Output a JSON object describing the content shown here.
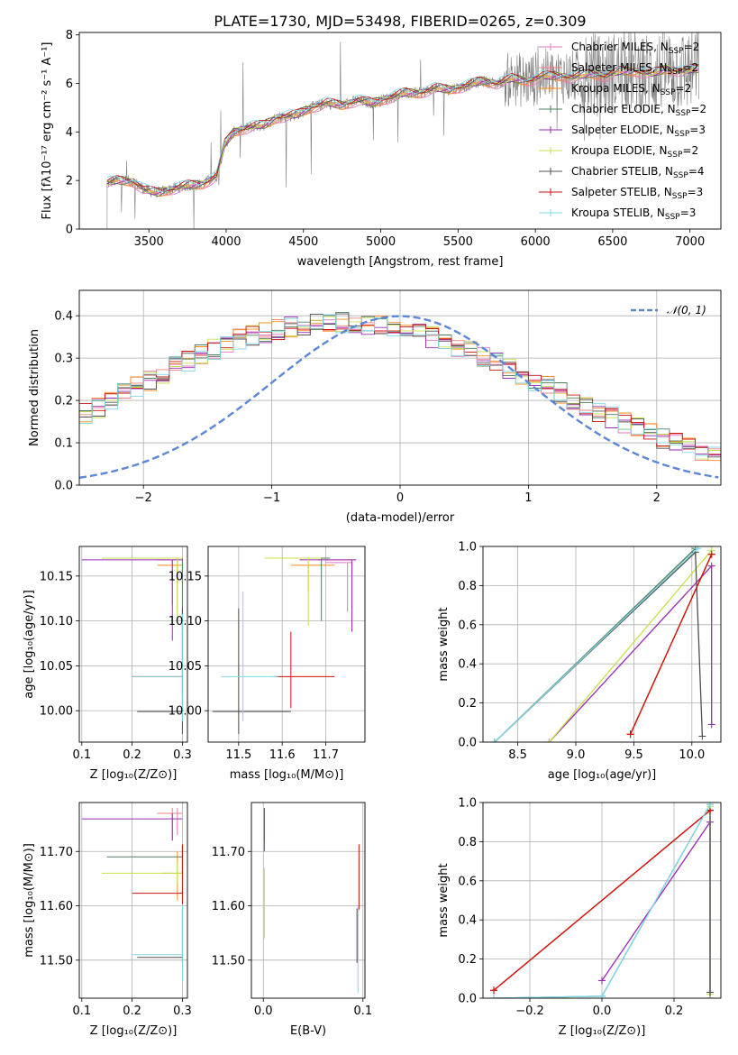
{
  "title": "PLATE=1730, MJD=53498, FIBERID=0265, z=0.309",
  "colors": {
    "data": "#808080",
    "Chabrier MILES": "#e377c2",
    "Salpeter MILES": "#f08080",
    "Kroupa MILES": "#ff8c1a",
    "Chabrier ELODIE": "#4f7f5f",
    "Salpeter ELODIE": "#9a2bb5",
    "Kroupa ELODIE": "#c8e04a",
    "Chabrier STELIB": "#505050",
    "Salpeter STELIB": "#cc1111",
    "Kroupa STELIB": "#80d8e8",
    "gaussian": "#5b87d6",
    "mw_line": "#d2763a"
  },
  "chart_data": [
    {
      "type": "line",
      "xlabel": "wavelength [Angstrom, rest frame]",
      "ylabel": "Flux [fλ10⁻¹⁷ erg cm⁻² s⁻¹ A⁻¹]",
      "xlim": [
        3050,
        7200
      ],
      "ylim": [
        0,
        8.1
      ],
      "xticks": [
        3500,
        4000,
        4500,
        5000,
        5500,
        6000,
        6500,
        7000
      ],
      "yticks": [
        0,
        2,
        4,
        6,
        8
      ],
      "legend_position": "top-right",
      "legend": [
        {
          "name": "Chabrier MILES",
          "n": "2"
        },
        {
          "name": "Salpeter MILES",
          "n": "2"
        },
        {
          "name": "Kroupa MILES",
          "n": "2"
        },
        {
          "name": "Chabrier ELODIE",
          "n": "2"
        },
        {
          "name": "Salpeter ELODIE",
          "n": "3"
        },
        {
          "name": "Kroupa ELODIE",
          "n": "2"
        },
        {
          "name": "Chabrier STELIB",
          "n": "4"
        },
        {
          "name": "Salpeter STELIB",
          "n": "3"
        },
        {
          "name": "Kroupa STELIB",
          "n": "3"
        }
      ],
      "continuum": {
        "x": [
          3230,
          3300,
          3400,
          3480,
          3560,
          3650,
          3750,
          3850,
          3940,
          3990,
          4050,
          4150,
          4250,
          4330,
          4450,
          4550,
          4650,
          4750,
          4850,
          4950,
          5050,
          5150,
          5250,
          5350,
          5450,
          5550,
          5650,
          5750,
          5850,
          5950,
          6050,
          6150,
          6250,
          6350,
          6450,
          6550,
          6650,
          6750,
          6850,
          6950,
          7050
        ],
        "y": [
          1.9,
          2.0,
          1.95,
          1.6,
          1.5,
          1.65,
          1.8,
          1.85,
          2.2,
          3.5,
          4.0,
          4.2,
          4.3,
          4.6,
          4.7,
          5.0,
          5.2,
          5.1,
          5.3,
          5.2,
          5.4,
          5.6,
          5.6,
          5.8,
          5.75,
          5.9,
          6.1,
          6.0,
          6.2,
          6.1,
          6.3,
          6.3,
          6.25,
          6.4,
          6.3,
          6.5,
          6.5,
          6.4,
          6.6,
          6.5,
          6.6
        ]
      }
    },
    {
      "type": "line",
      "xlabel": "(data-model)/error",
      "ylabel": "Normed distribution",
      "xlim": [
        -2.5,
        2.5
      ],
      "ylim": [
        0,
        0.46
      ],
      "xticks": [
        -2,
        -1,
        0,
        1,
        2
      ],
      "yticks": [
        0.0,
        0.1,
        0.2,
        0.3,
        0.4
      ],
      "legend": "𝒩(0, 1)",
      "legend_position": "top-right",
      "bin_width": 0.1,
      "hist_base": [
        0.03,
        0.033,
        0.036,
        0.04,
        0.045,
        0.05,
        0.056,
        0.062,
        0.069,
        0.077,
        0.086,
        0.095,
        0.105,
        0.116,
        0.128,
        0.141,
        0.155,
        0.169,
        0.184,
        0.2,
        0.216,
        0.232,
        0.248,
        0.264,
        0.279,
        0.294,
        0.308,
        0.321,
        0.333,
        0.344,
        0.353,
        0.361,
        0.368,
        0.373,
        0.377,
        0.38,
        0.382,
        0.383,
        0.382,
        0.38,
        0.376,
        0.371,
        0.365,
        0.357,
        0.349,
        0.339,
        0.328,
        0.316,
        0.304,
        0.291,
        0.277,
        0.263,
        0.248,
        0.233,
        0.218,
        0.203,
        0.188,
        0.174,
        0.16,
        0.147,
        0.134,
        0.122,
        0.111,
        0.1,
        0.091,
        0.082,
        0.073,
        0.066,
        0.059,
        0.052,
        0.047,
        0.042,
        0.037,
        0.033,
        0.03,
        0.027,
        0.024,
        0.022,
        0.02,
        0.018,
        0.017,
        0.016,
        0.015,
        0.014,
        0.013
      ]
    },
    {
      "type": "scatter",
      "xlabel": "Z [log₁₀(Z/Z⊙)]",
      "ylabel": "age  [log₁₀(age/yr)]",
      "xlim": [
        0.095,
        0.31
      ],
      "ylim": [
        9.965,
        10.183
      ],
      "xticks": [
        0.1,
        0.2,
        0.3
      ],
      "yticks": [
        10.0,
        10.05,
        10.1,
        10.15
      ],
      "points": [
        {
          "s": "Chabrier MILES",
          "x": 0.29,
          "y": 10.17,
          "xl": 0.02,
          "xh": 0.01,
          "yl": 0.06,
          "yh": 0.0
        },
        {
          "s": "Salpeter MILES",
          "x": 0.28,
          "y": 10.168,
          "xl": 0.03,
          "xh": 0.015,
          "yl": 0.05,
          "yh": 0.0
        },
        {
          "s": "Kroupa MILES",
          "x": 0.29,
          "y": 10.162,
          "xl": 0.04,
          "xh": 0.01,
          "yl": 0.02,
          "yh": 0.0
        },
        {
          "s": "Chabrier ELODIE",
          "x": 0.3,
          "y": 10.17,
          "xl": 0.15,
          "xh": 0.0,
          "yl": 0.08,
          "yh": 0.0
        },
        {
          "s": "Salpeter ELODIE",
          "x": 0.28,
          "y": 10.168,
          "xl": 0.18,
          "xh": 0.02,
          "yl": 0.09,
          "yh": 0.0
        },
        {
          "s": "Kroupa ELODIE",
          "x": 0.29,
          "y": 10.17,
          "xl": 0.15,
          "xh": 0.01,
          "yl": 0.07,
          "yh": 0.0
        },
        {
          "s": "Chabrier STELIB",
          "x": 0.3,
          "y": 9.999,
          "xl": 0.09,
          "xh": 0.0,
          "yl": 0.025,
          "yh": 0.115
        },
        {
          "s": "Salpeter STELIB",
          "x": 0.3,
          "y": 10.038,
          "xl": 0.1,
          "xh": 0.0,
          "yl": 0.02,
          "yh": 0.05
        },
        {
          "s": "Kroupa STELIB",
          "x": 0.3,
          "y": 10.038,
          "xl": 0.1,
          "xh": 0.0,
          "yl": 0.05,
          "yh": 0.07
        }
      ]
    },
    {
      "type": "scatter",
      "xlabel": "mass [log₁₀(M/M⊙)]",
      "ylabel": "",
      "xlim": [
        11.43,
        11.79
      ],
      "ylim": [
        9.965,
        10.183
      ],
      "xticks": [
        11.5,
        11.6,
        11.7
      ],
      "xticklabels": [
        "11.5",
        "11.6",
        "11.7"
      ],
      "yticks": [
        10.0,
        10.05,
        10.1,
        10.15
      ],
      "points": [
        {
          "s": "Chabrier MILES",
          "x": 11.75,
          "y": 10.165,
          "xl": 0.05,
          "xh": 0.01,
          "yl": 0.055,
          "yh": 0.0
        },
        {
          "s": "Salpeter MILES",
          "x": 11.76,
          "y": 10.168,
          "xl": 0.08,
          "xh": 0.01,
          "yl": 0.05,
          "yh": 0.0
        },
        {
          "s": "Kroupa MILES",
          "x": 11.66,
          "y": 10.162,
          "xl": 0.04,
          "xh": 0.06,
          "yl": 0.03,
          "yh": 0.0
        },
        {
          "s": "Chabrier ELODIE",
          "x": 11.69,
          "y": 10.17,
          "xl": 0.1,
          "xh": 0.02,
          "yl": 0.07,
          "yh": 0.0
        },
        {
          "s": "Salpeter ELODIE",
          "x": 11.76,
          "y": 10.168,
          "xl": 0.12,
          "xh": 0.01,
          "yl": 0.08,
          "yh": 0.0
        },
        {
          "s": "Kroupa ELODIE",
          "x": 11.66,
          "y": 10.17,
          "xl": 0.1,
          "xh": 0.03,
          "yl": 0.075,
          "yh": 0.0
        },
        {
          "s": "Chabrier STELIB",
          "x": 11.5,
          "y": 9.999,
          "xl": 0.06,
          "xh": 0.12,
          "yl": 0.025,
          "yh": 0.115
        },
        {
          "s": "Salpeter STELIB",
          "x": 11.62,
          "y": 10.038,
          "xl": 0.04,
          "xh": 0.1,
          "yl": 0.035,
          "yh": 0.05
        },
        {
          "s": "Kroupa STELIB",
          "x": 11.51,
          "y": 10.038,
          "xl": 0.05,
          "xh": 0.08,
          "yl": 0.05,
          "yh": 0.095
        }
      ]
    },
    {
      "type": "line",
      "xlabel": "age  [log₁₀(age/yr)]",
      "ylabel": "mass weight",
      "xlim": [
        8.2,
        10.25
      ],
      "ylim": [
        0,
        1.0
      ],
      "xticks": [
        8.5,
        9.0,
        9.5,
        10.0
      ],
      "yticks": [
        0.0,
        0.2,
        0.4,
        0.6,
        0.8,
        1.0
      ],
      "series": [
        {
          "s": "Chabrier MILES",
          "x": [
            9.47,
            10.17
          ],
          "y": [
            0.04,
            0.96
          ]
        },
        {
          "s": "Salpeter MILES",
          "x": [
            9.47,
            10.17
          ],
          "y": [
            0.04,
            0.96
          ]
        },
        {
          "s": "Kroupa MILES",
          "x": [
            9.47,
            10.17
          ],
          "y": [
            0.04,
            0.96
          ]
        },
        {
          "s": "Chabrier ELODIE",
          "x": [
            8.3,
            10.03
          ],
          "y": [
            0.0,
            0.99
          ]
        },
        {
          "s": "Salpeter ELODIE",
          "x": [
            8.77,
            10.17,
            10.17
          ],
          "y": [
            0.0,
            0.9,
            0.09
          ]
        },
        {
          "s": "Kroupa ELODIE",
          "x": [
            8.77,
            10.17
          ],
          "y": [
            0.0,
            0.98
          ]
        },
        {
          "s": "Chabrier STELIB",
          "x": [
            8.3,
            10.03,
            10.09
          ],
          "y": [
            0.0,
            0.97,
            0.03
          ]
        },
        {
          "s": "Salpeter STELIB",
          "x": [
            9.47,
            10.17
          ],
          "y": [
            0.04,
            0.96
          ]
        },
        {
          "s": "Kroupa STELIB",
          "x": [
            8.3,
            10.05
          ],
          "y": [
            0.0,
            0.99
          ]
        }
      ]
    },
    {
      "type": "scatter",
      "xlabel": "Z [log₁₀(Z/Z⊙)]",
      "ylabel": "mass [log₁₀(M/M⊙)]",
      "xlim": [
        0.095,
        0.31
      ],
      "ylim": [
        11.43,
        11.79
      ],
      "xticks": [
        0.1,
        0.2,
        0.3
      ],
      "yticks": [
        11.5,
        11.6,
        11.7
      ],
      "points": [
        {
          "s": "Chabrier MILES",
          "x": 0.29,
          "y": 11.77,
          "xl": 0.02,
          "xh": 0.01,
          "yl": 0.04,
          "yh": 0.01
        },
        {
          "s": "Salpeter MILES",
          "x": 0.28,
          "y": 11.77,
          "xl": 0.03,
          "xh": 0.02,
          "yl": 0.05,
          "yh": 0.01
        },
        {
          "s": "Kroupa MILES",
          "x": 0.29,
          "y": 11.66,
          "xl": 0.03,
          "xh": 0.01,
          "yl": 0.05,
          "yh": 0.04
        },
        {
          "s": "Chabrier ELODIE",
          "x": 0.3,
          "y": 11.69,
          "xl": 0.15,
          "xh": 0.0,
          "yl": 0.03,
          "yh": 0.02
        },
        {
          "s": "Salpeter ELODIE",
          "x": 0.28,
          "y": 11.76,
          "xl": 0.18,
          "xh": 0.02,
          "yl": 0.04,
          "yh": 0.01
        },
        {
          "s": "Kroupa ELODIE",
          "x": 0.29,
          "y": 11.66,
          "xl": 0.15,
          "xh": 0.01,
          "yl": 0.02,
          "yh": 0.02
        },
        {
          "s": "Chabrier STELIB",
          "x": 0.3,
          "y": 11.505,
          "xl": 0.09,
          "xh": 0.0,
          "yl": 0.01,
          "yh": 0.09
        },
        {
          "s": "Salpeter STELIB",
          "x": 0.3,
          "y": 11.623,
          "xl": 0.1,
          "xh": 0.0,
          "yl": 0.02,
          "yh": 0.09
        },
        {
          "s": "Kroupa STELIB",
          "x": 0.3,
          "y": 11.51,
          "xl": 0.1,
          "xh": 0.0,
          "yl": 0.05,
          "yh": 0.09
        }
      ]
    },
    {
      "type": "scatter",
      "xlabel": "E(B-V)",
      "ylabel": "",
      "xlim": [
        -0.012,
        0.102
      ],
      "ylim": [
        11.43,
        11.79
      ],
      "xticks": [
        0.0,
        0.1
      ],
      "xticklabels": [
        "0.0",
        "0.1"
      ],
      "yticks": [
        11.5,
        11.6,
        11.7
      ],
      "points": [
        {
          "s": "Chabrier MILES",
          "x": 0.001,
          "y": 11.76,
          "xl": 0.0,
          "xh": 0.0,
          "yl": 0.04,
          "yh": 0.02
        },
        {
          "s": "Salpeter ELODIE",
          "x": 0.001,
          "y": 11.75,
          "xl": 0.0,
          "xh": 0.0,
          "yl": 0.05,
          "yh": 0.03
        },
        {
          "s": "Kroupa ELODIE",
          "x": 0.001,
          "y": 11.66,
          "xl": 0.0,
          "xh": 0.0,
          "yl": 0.12,
          "yh": 0.01
        },
        {
          "s": "Salpeter STELIB",
          "x": 0.096,
          "y": 11.623,
          "xl": 0.0,
          "xh": 0.0,
          "yl": 0.03,
          "yh": 0.09
        },
        {
          "s": "Kroupa STELIB",
          "x": 0.095,
          "y": 11.51,
          "xl": 0.0,
          "xh": 0.0,
          "yl": 0.07,
          "yh": 0.09
        },
        {
          "s": "Chabrier STELIB",
          "x": 0.094,
          "y": 11.505,
          "xl": 0.0,
          "xh": 0.0,
          "yl": 0.01,
          "yh": 0.09
        }
      ]
    },
    {
      "type": "line",
      "xlabel": "Z [log₁₀(Z/Z⊙)]",
      "ylabel": "mass weight",
      "xlim": [
        -0.33,
        0.33
      ],
      "ylim": [
        0,
        1.0
      ],
      "xticks": [
        -0.2,
        0.0,
        0.2
      ],
      "xticklabels": [
        "−0.2",
        "0.0",
        "0.2"
      ],
      "yticks": [
        0.0,
        0.2,
        0.4,
        0.6,
        0.8,
        1.0
      ],
      "series": [
        {
          "s": "Chabrier MILES",
          "x": [
            -0.3,
            0.3
          ],
          "y": [
            0.04,
            0.96
          ]
        },
        {
          "s": "Salpeter MILES",
          "x": [
            -0.3,
            0.3
          ],
          "y": [
            0.04,
            0.96
          ]
        },
        {
          "s": "Kroupa MILES",
          "x": [
            -0.3,
            0.3
          ],
          "y": [
            0.04,
            0.96
          ]
        },
        {
          "s": "Chabrier ELODIE",
          "x": [
            -0.3,
            0.0,
            0.3
          ],
          "y": [
            0.0,
            0.01,
            0.99
          ]
        },
        {
          "s": "Salpeter ELODIE",
          "x": [
            0.0,
            0.3,
            0.3
          ],
          "y": [
            0.09,
            0.9,
            0.0
          ]
        },
        {
          "s": "Kroupa ELODIE",
          "x": [
            0.3,
            0.3
          ],
          "y": [
            0.02,
            0.98
          ]
        },
        {
          "s": "Chabrier STELIB",
          "x": [
            0.3,
            0.3
          ],
          "y": [
            0.03,
            0.96
          ]
        },
        {
          "s": "Salpeter STELIB",
          "x": [
            -0.3,
            0.3
          ],
          "y": [
            0.04,
            0.96
          ]
        },
        {
          "s": "Kroupa STELIB",
          "x": [
            -0.3,
            0.0,
            0.3
          ],
          "y": [
            0.0,
            0.01,
            0.99
          ]
        }
      ]
    }
  ]
}
